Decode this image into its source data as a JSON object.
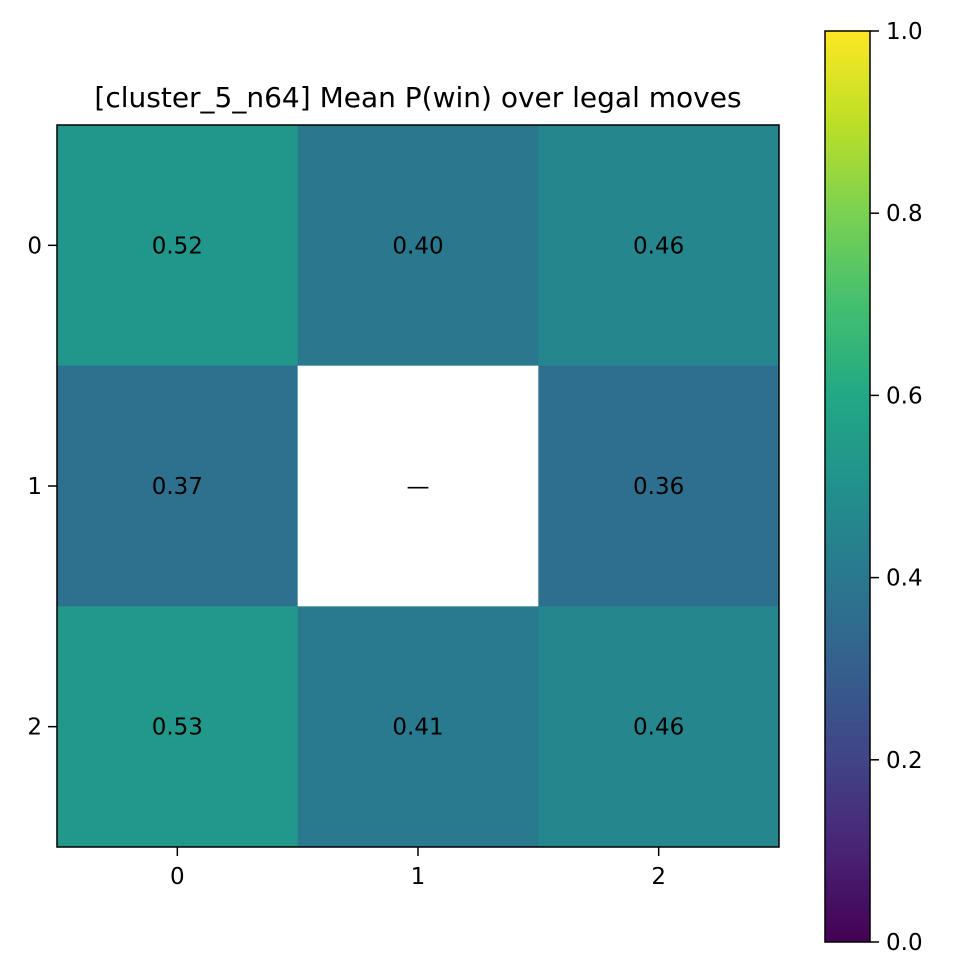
{
  "chart_data": {
    "type": "heatmap",
    "title": "[cluster_5_n64] Mean P(win) over legal moves",
    "rows": [
      "0",
      "1",
      "2"
    ],
    "cols": [
      "0",
      "1",
      "2"
    ],
    "values": [
      [
        0.52,
        0.4,
        0.46
      ],
      [
        0.37,
        null,
        0.36
      ],
      [
        0.53,
        0.41,
        0.46
      ]
    ],
    "cell_labels": [
      [
        "0.52",
        "0.40",
        "0.46"
      ],
      [
        "0.37",
        "—",
        "0.36"
      ],
      [
        "0.53",
        "0.41",
        "0.46"
      ]
    ],
    "missing_color": "#ffffff",
    "colormap": "viridis",
    "vmin": 0.0,
    "vmax": 1.0,
    "colorbar_ticks": [
      "0.0",
      "0.2",
      "0.4",
      "0.6",
      "0.8",
      "1.0"
    ],
    "colorbar_tick_values": [
      0.0,
      0.2,
      0.4,
      0.6,
      0.8,
      1.0
    ]
  }
}
